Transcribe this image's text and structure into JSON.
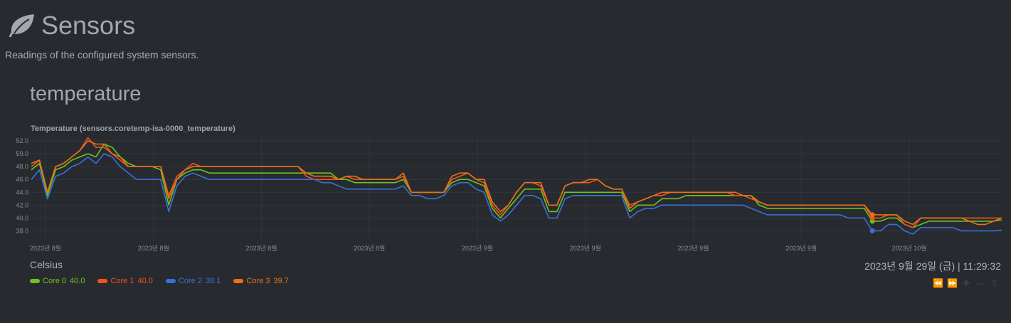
{
  "header": {
    "title": "Sensors",
    "description": "Readings of the configured system sensors.",
    "icon": "leaf-icon"
  },
  "section": {
    "title": "temperature"
  },
  "chart_panel": {
    "units": "Celsius",
    "timestamp": "2023년 9월 29일 (금) | 11:29:32",
    "toolbox": [
      "rewind-icon",
      "fast-forward-icon",
      "zoom-in-icon",
      "zoom-out-icon",
      "resize-icon"
    ]
  },
  "legend": [
    {
      "name": "Core 0",
      "value": "40.0",
      "color": "#6cc417"
    },
    {
      "name": "Core 1",
      "value": "40.0",
      "color": "#f4511e"
    },
    {
      "name": "Core 2",
      "value": "38.1",
      "color": "#3b6fd6"
    },
    {
      "name": "Core 3",
      "value": "39.7",
      "color": "#e8701a"
    }
  ],
  "chart_data": {
    "type": "line",
    "title": "Temperature (sensors.coretemp-isa-0000_temperature)",
    "xlabel": "",
    "ylabel": "Celsius",
    "ylim": [
      36.5,
      53.0
    ],
    "yticks": [
      "52.0",
      "50.0",
      "48.0",
      "46.0",
      "44.0",
      "42.0",
      "40.0",
      "38.0"
    ],
    "x_tick_labels": [
      "2023년 8월",
      "2023년 8월",
      "2023년 8월",
      "2023년 8월",
      "2023년 9월",
      "2023년 9월",
      "2023년 9월",
      "2023년 9월",
      "2023년 10월"
    ],
    "grid": true,
    "x": [
      0,
      1,
      2,
      3,
      4,
      5,
      6,
      7,
      8,
      9,
      10,
      11,
      12,
      13,
      14,
      15,
      16,
      17,
      18,
      19,
      20,
      21,
      22,
      23,
      24,
      25,
      26,
      27,
      28,
      29,
      30,
      31,
      32,
      33,
      34,
      35,
      36,
      37,
      38,
      39,
      40,
      41,
      42,
      43,
      44,
      45,
      46,
      47,
      48,
      49,
      50,
      51,
      52,
      53,
      54,
      55,
      56,
      57,
      58,
      59,
      60,
      61,
      62,
      63,
      64,
      65,
      66,
      67,
      68,
      69,
      70,
      71,
      72,
      73,
      74,
      75,
      76,
      77,
      78,
      79,
      80,
      81,
      82,
      83,
      84,
      85,
      86,
      87,
      88,
      89,
      90,
      91,
      92,
      93,
      94,
      95,
      96,
      97,
      98,
      99,
      100,
      101,
      102,
      103,
      104,
      105,
      106,
      107,
      108,
      109,
      110,
      111,
      112,
      113,
      114,
      115,
      116,
      117,
      118,
      119,
      120
    ],
    "series": [
      {
        "name": "Core 0",
        "color": "#6cc417",
        "values": [
          47.5,
          48.5,
          43.5,
          47.5,
          48,
          49,
          49.5,
          50,
          49.5,
          51.5,
          51,
          49.5,
          48.5,
          48,
          48,
          48,
          47.5,
          42,
          46,
          47,
          47.5,
          47.5,
          47,
          47,
          47,
          47,
          47,
          47,
          47,
          47,
          47,
          47,
          47,
          47,
          47,
          47,
          47,
          47,
          46,
          46,
          45.5,
          45.5,
          45.5,
          45.5,
          45.5,
          45.5,
          46,
          44,
          44,
          44,
          44,
          44,
          45.5,
          46,
          46,
          45.5,
          45,
          41.5,
          40,
          41.5,
          43,
          44.5,
          44.5,
          44.5,
          41,
          41,
          44,
          44,
          44,
          44,
          44,
          44,
          44,
          44,
          41,
          42,
          42,
          42,
          43,
          43,
          43,
          43.5,
          43.5,
          43.5,
          43.5,
          43.5,
          43.5,
          43.5,
          43.5,
          43.5,
          42,
          41.5,
          41.5,
          41.5,
          41.5,
          41.5,
          41.5,
          41.5,
          41.5,
          41.5,
          41.5,
          41.5,
          41.5,
          41.5,
          39.5,
          39.5,
          40,
          40,
          39,
          38.5,
          39,
          39.5,
          39.5,
          39.5,
          39.5,
          39.5,
          39.5,
          39.5,
          39.5,
          39.5,
          40.0
        ]
      },
      {
        "name": "Core 1",
        "color": "#f4511e",
        "values": [
          48,
          49,
          44,
          48,
          48.5,
          49.5,
          50.5,
          52.5,
          51,
          51,
          50,
          49,
          48,
          48,
          48,
          48,
          48,
          43.5,
          46.5,
          47.5,
          48.5,
          48,
          48,
          48,
          48,
          48,
          48,
          48,
          48,
          48,
          48,
          48,
          48,
          48,
          46.5,
          46,
          46,
          46,
          46,
          46.5,
          46,
          46,
          46,
          46,
          46,
          46,
          46.5,
          44,
          44,
          44,
          44,
          44,
          46,
          46.5,
          47,
          46,
          45.5,
          42,
          40.5,
          42,
          44,
          45.5,
          45.5,
          45,
          42,
          42,
          45,
          45.5,
          45.5,
          45.5,
          46,
          45,
          44.5,
          44.5,
          42,
          42.5,
          43,
          43.5,
          43.5,
          44,
          44,
          44,
          44,
          44,
          44,
          44,
          44,
          43.5,
          43.5,
          43,
          42.5,
          42,
          42,
          42,
          42,
          42,
          42,
          42,
          42,
          42,
          42,
          42,
          42,
          42,
          40,
          40,
          40.5,
          40.5,
          39,
          38.5,
          40,
          40,
          40,
          40,
          40,
          40,
          40,
          40,
          40,
          40,
          40.0
        ]
      },
      {
        "name": "Core 2",
        "color": "#3b6fd6",
        "values": [
          46,
          47.5,
          43,
          46.5,
          47,
          48,
          48.5,
          49.5,
          48.5,
          50,
          49.5,
          48,
          47,
          46,
          46,
          46,
          46,
          41,
          45,
          46.5,
          47,
          46.5,
          46,
          46,
          46,
          46,
          46,
          46,
          46,
          46,
          46,
          46,
          46,
          46,
          46,
          46,
          45.5,
          45.5,
          45,
          44.5,
          44.5,
          44.5,
          44.5,
          44.5,
          44.5,
          44.5,
          45,
          43.5,
          43.5,
          43,
          43,
          43.5,
          45,
          45.5,
          45.5,
          44.5,
          44,
          40.5,
          39.5,
          40.5,
          42,
          43.5,
          43.5,
          43,
          40,
          40,
          43,
          43.5,
          43.5,
          43.5,
          43.5,
          43.5,
          43.5,
          43.5,
          40,
          41,
          41.5,
          41.5,
          42,
          42,
          42,
          42,
          42,
          42,
          42,
          42,
          42,
          42,
          42,
          41.5,
          41,
          40.5,
          40.5,
          40.5,
          40.5,
          40.5,
          40.5,
          40.5,
          40.5,
          40.5,
          40.5,
          40,
          40,
          40,
          38,
          38,
          39,
          39,
          38,
          37.5,
          38.5,
          38.5,
          38.5,
          38.5,
          38.5,
          38,
          38,
          38,
          38,
          38,
          38.1
        ]
      },
      {
        "name": "Core 3",
        "color": "#e8701a",
        "values": [
          48.5,
          49,
          44,
          48,
          48.5,
          49.5,
          50.5,
          52,
          51.5,
          51.5,
          50,
          49.5,
          48,
          48,
          48,
          48,
          48,
          43,
          46,
          47.5,
          48,
          48,
          48,
          48,
          48,
          48,
          48,
          48,
          48,
          48,
          48,
          48,
          48,
          48,
          47,
          46.5,
          46.5,
          46.5,
          46,
          46.5,
          46.5,
          46,
          46,
          46,
          46,
          46,
          47,
          44,
          44,
          44,
          44,
          44,
          46.5,
          47,
          47,
          46,
          46,
          42.5,
          41,
          42,
          44,
          45.5,
          45.5,
          45.5,
          42,
          42,
          45,
          45.5,
          45.5,
          46,
          46,
          45,
          44.5,
          44.5,
          41.5,
          42.5,
          43,
          43.5,
          44,
          44,
          44,
          44,
          44,
          44,
          44,
          44,
          44,
          44,
          43.5,
          43.5,
          42.5,
          42,
          42,
          42,
          42,
          42,
          42,
          42,
          42,
          42,
          42,
          42,
          42,
          42,
          40.5,
          40.5,
          40.5,
          40.5,
          39.5,
          39,
          40,
          40,
          40,
          40,
          40,
          40,
          39.5,
          39,
          39,
          39.5,
          39.7
        ]
      }
    ]
  }
}
